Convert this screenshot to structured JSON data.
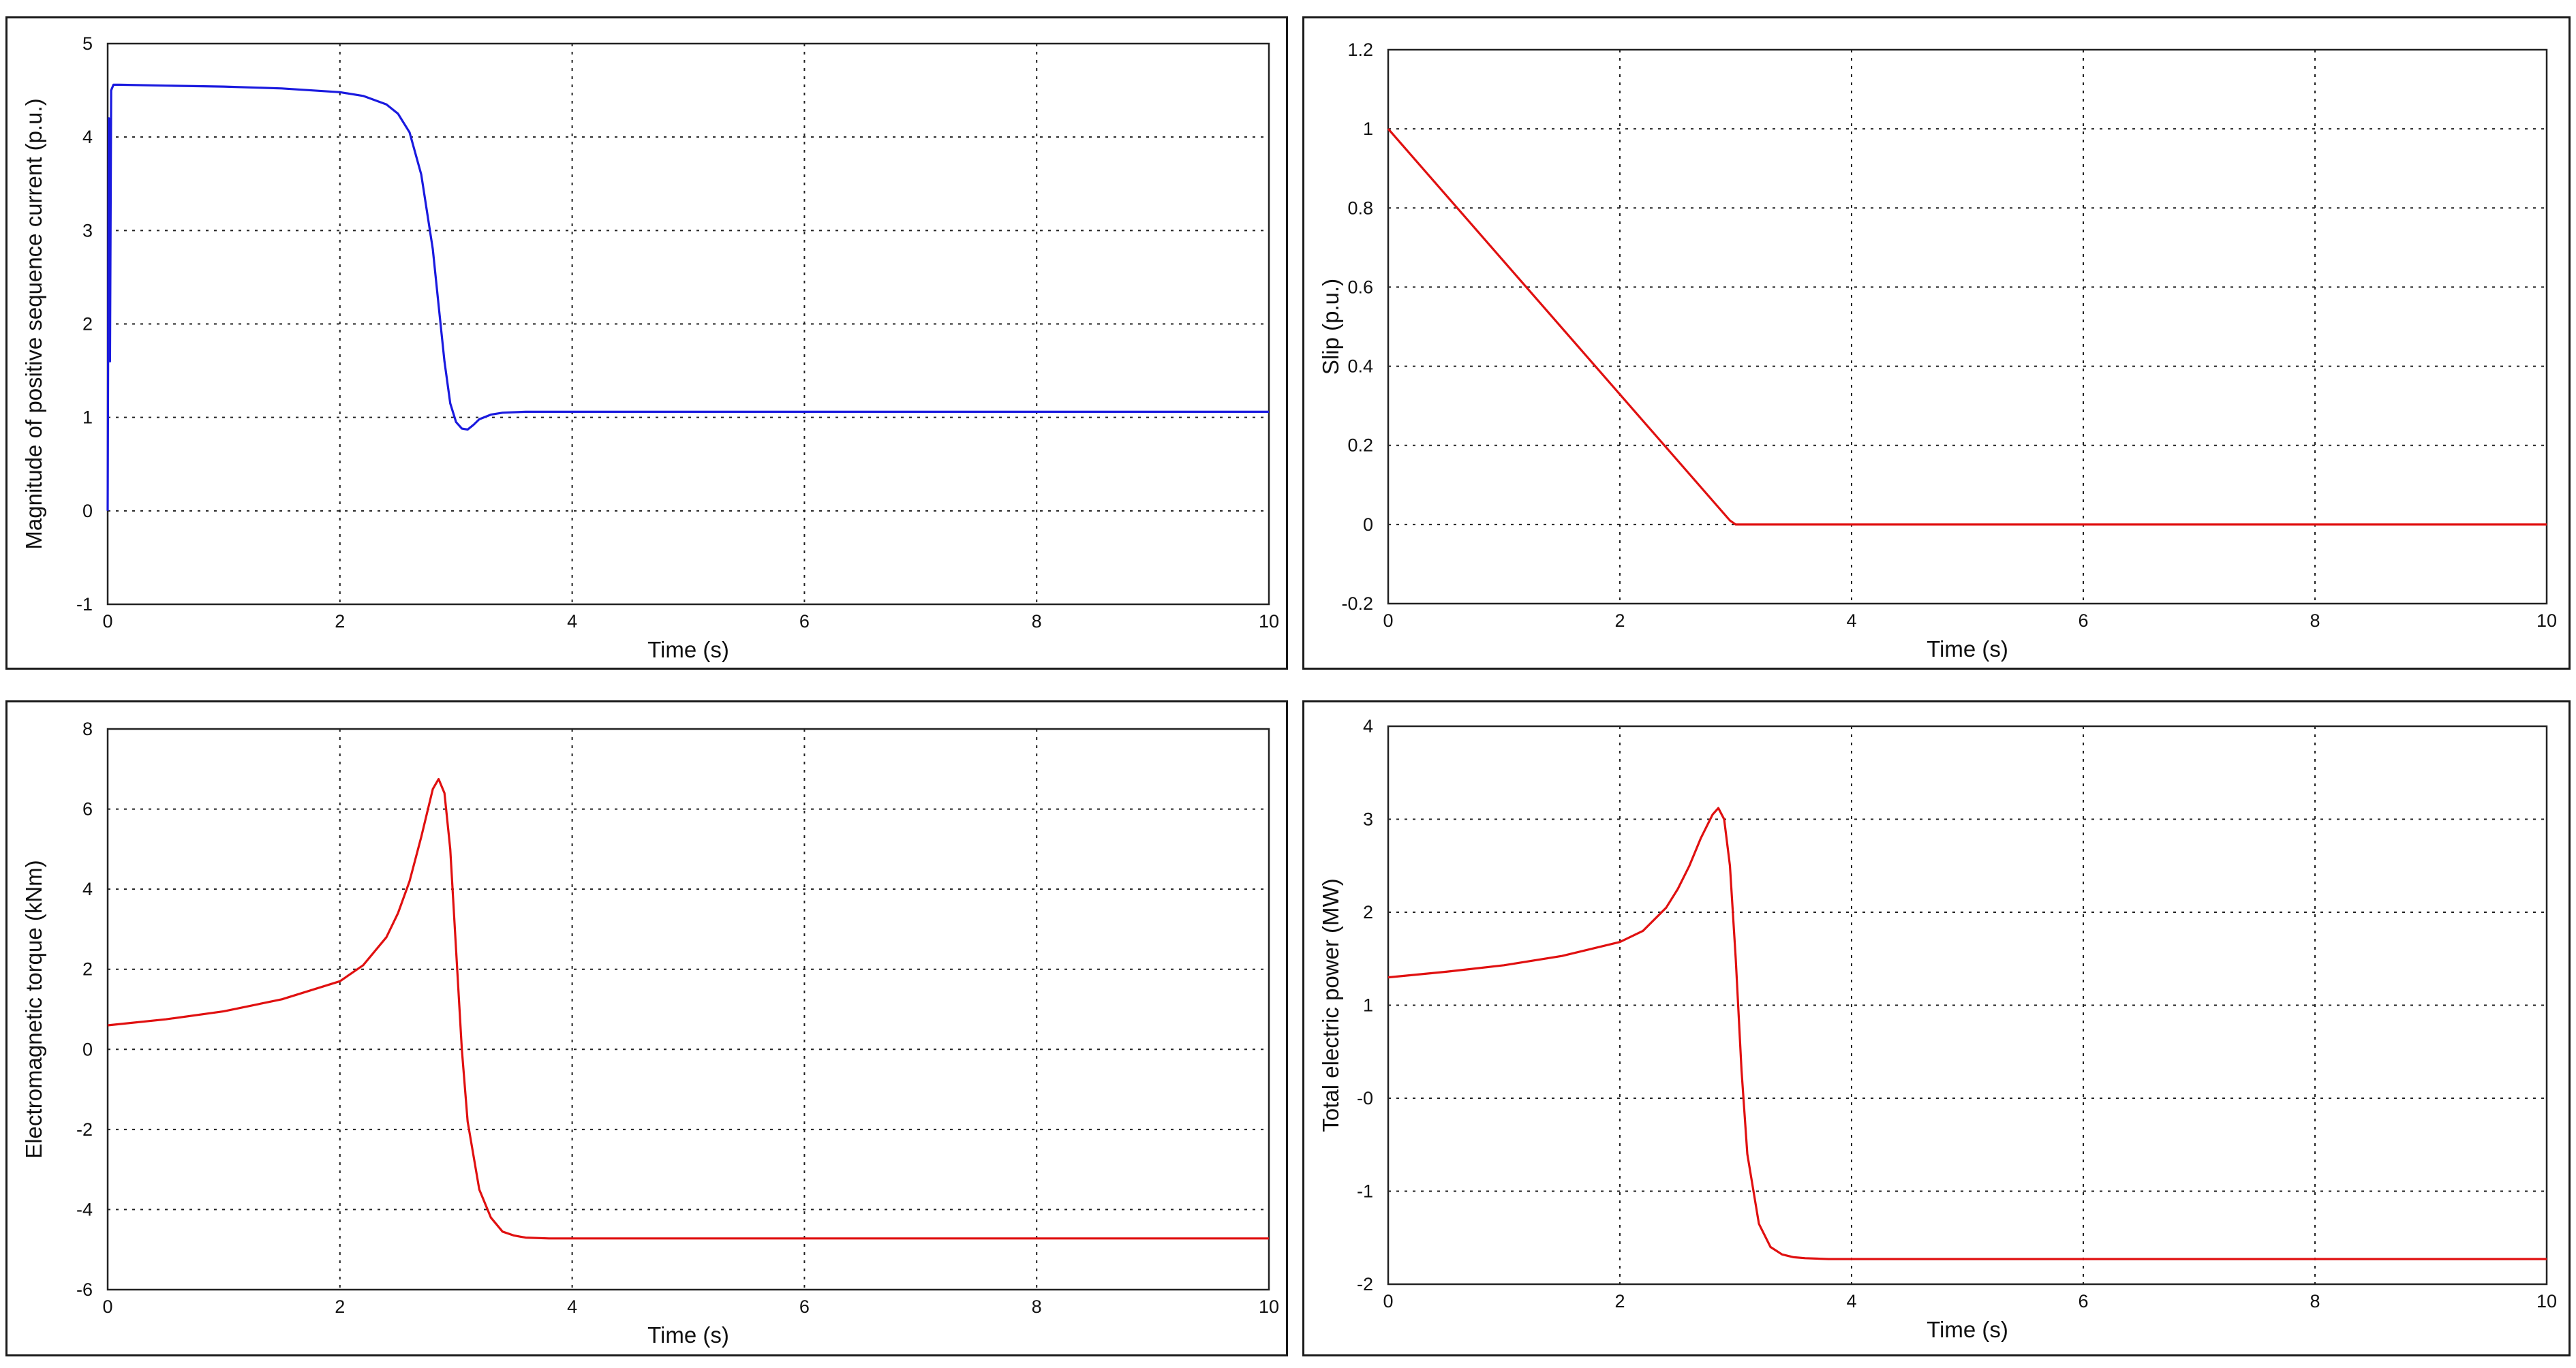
{
  "chart_data": [
    {
      "type": "line",
      "title": "",
      "xlabel": "Time (s)",
      "ylabel": "Magnitude of positive sequence current (p.u.)",
      "xlim": [
        0,
        10
      ],
      "ylim": [
        -1,
        5
      ],
      "xticks": [
        "0",
        "2",
        "4",
        "6",
        "8",
        "10"
      ],
      "yticks": [
        "-1",
        "0",
        "1",
        "2",
        "3",
        "4",
        "5"
      ],
      "grid": true,
      "color": "#1a1adf",
      "series": [
        {
          "x": [
            0,
            0.01,
            0.02,
            0.03,
            0.05,
            0.1,
            0.5,
            1.0,
            1.5,
            2.0,
            2.2,
            2.4,
            2.5,
            2.6,
            2.7,
            2.8,
            2.85,
            2.9,
            2.95,
            3.0,
            3.05,
            3.1,
            3.15,
            3.2,
            3.3,
            3.4,
            3.6,
            4.0,
            6.0,
            8.0,
            10.0
          ],
          "y": [
            0,
            4.2,
            1.6,
            4.5,
            4.56,
            4.56,
            4.55,
            4.54,
            4.52,
            4.48,
            4.44,
            4.35,
            4.25,
            4.05,
            3.6,
            2.8,
            2.2,
            1.6,
            1.15,
            0.95,
            0.88,
            0.87,
            0.92,
            0.98,
            1.03,
            1.05,
            1.06,
            1.06,
            1.06,
            1.06,
            1.06
          ]
        }
      ]
    },
    {
      "type": "line",
      "title": "",
      "xlabel": "Time (s)",
      "ylabel": "Slip (p.u.)",
      "xlim": [
        0,
        10
      ],
      "ylim": [
        -0.2,
        1.2
      ],
      "xticks": [
        "0",
        "2",
        "4",
        "6",
        "8",
        "10"
      ],
      "yticks": [
        "-0.2",
        "0",
        "0.2",
        "0.4",
        "0.6",
        "0.8",
        "1",
        "1.2"
      ],
      "grid": true,
      "color": "#e01010",
      "series": [
        {
          "x": [
            0,
            2.95,
            3.0,
            10.0
          ],
          "y": [
            1.0,
            0.01,
            0.0,
            0.0
          ]
        }
      ]
    },
    {
      "type": "line",
      "title": "",
      "xlabel": "Time (s)",
      "ylabel": "Electromagnetic torque (kNm)",
      "xlim": [
        0,
        10
      ],
      "ylim": [
        -6,
        8
      ],
      "xticks": [
        "0",
        "2",
        "4",
        "6",
        "8",
        "10"
      ],
      "yticks": [
        "-6",
        "-4",
        "-2",
        "0",
        "2",
        "4",
        "6",
        "8"
      ],
      "grid": true,
      "color": "#e01010",
      "series": [
        {
          "x": [
            0,
            0.5,
            1.0,
            1.5,
            2.0,
            2.2,
            2.4,
            2.5,
            2.6,
            2.7,
            2.8,
            2.85,
            2.9,
            2.95,
            3.0,
            3.05,
            3.1,
            3.2,
            3.3,
            3.4,
            3.5,
            3.6,
            3.8,
            4.0,
            6.0,
            8.0,
            10.0
          ],
          "y": [
            0.6,
            0.75,
            0.95,
            1.25,
            1.7,
            2.1,
            2.8,
            3.4,
            4.2,
            5.3,
            6.5,
            6.75,
            6.4,
            5.0,
            2.5,
            0.0,
            -1.8,
            -3.5,
            -4.2,
            -4.55,
            -4.65,
            -4.7,
            -4.72,
            -4.72,
            -4.72,
            -4.72,
            -4.72
          ]
        }
      ]
    },
    {
      "type": "line",
      "title": "",
      "xlabel": "Time (s)",
      "ylabel": "Total electric power (MW)",
      "xlim": [
        0,
        10
      ],
      "ylim": [
        -2,
        4
      ],
      "xticks": [
        "0",
        "2",
        "4",
        "6",
        "8",
        "10"
      ],
      "yticks": [
        "-2",
        "-1",
        "-0",
        "1",
        "2",
        "3",
        "4"
      ],
      "grid": true,
      "color": "#e01010",
      "series": [
        {
          "x": [
            0,
            0.5,
            1.0,
            1.5,
            2.0,
            2.2,
            2.4,
            2.5,
            2.6,
            2.7,
            2.8,
            2.85,
            2.9,
            2.95,
            3.0,
            3.05,
            3.1,
            3.2,
            3.3,
            3.4,
            3.5,
            3.6,
            3.8,
            4.0,
            6.0,
            8.0,
            10.0
          ],
          "y": [
            1.3,
            1.36,
            1.43,
            1.53,
            1.68,
            1.8,
            2.05,
            2.25,
            2.5,
            2.8,
            3.05,
            3.12,
            3.0,
            2.5,
            1.5,
            0.3,
            -0.6,
            -1.35,
            -1.6,
            -1.68,
            -1.71,
            -1.72,
            -1.73,
            -1.73,
            -1.73,
            -1.73,
            -1.73
          ]
        }
      ]
    }
  ]
}
